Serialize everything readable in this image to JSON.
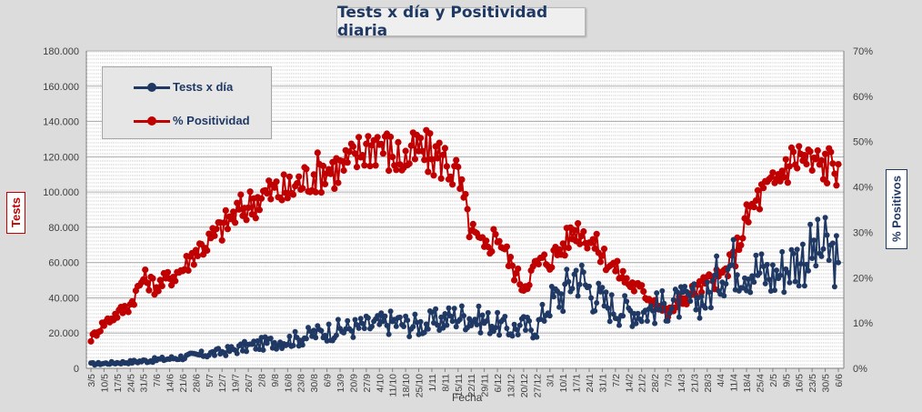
{
  "title": "Tests x día y Positividad diaria",
  "colors": {
    "tests": "#1f3864",
    "positividad": "#c00000",
    "grid": "#c0c0c0",
    "axis_text": "#404040"
  },
  "chart_data": {
    "type": "line",
    "title": "Tests x día y Positividad diaria",
    "xlabel": "Fecha",
    "ylabel_left": "Tests",
    "ylabel_right": "% Positivos",
    "ylim_left": [
      0,
      180000
    ],
    "ylim_right": [
      0,
      70
    ],
    "grid": true,
    "legend_position": "top-left",
    "y_left_ticks": [
      "0",
      "20.000",
      "40.000",
      "60.000",
      "80.000",
      "100.000",
      "120.000",
      "140.000",
      "160.000",
      "180.000"
    ],
    "y_right_ticks": [
      "0%",
      "10%",
      "20%",
      "30%",
      "40%",
      "50%",
      "60%",
      "70%"
    ],
    "x_ticks": [
      "3/5",
      "10/5",
      "17/5",
      "24/5",
      "31/5",
      "7/6",
      "14/6",
      "21/6",
      "28/6",
      "5/7",
      "12/7",
      "19/7",
      "26/7",
      "2/8",
      "9/8",
      "16/8",
      "23/8",
      "30/8",
      "6/9",
      "13/9",
      "20/9",
      "27/9",
      "4/10",
      "11/10",
      "18/10",
      "25/10",
      "1/11",
      "8/11",
      "15/11",
      "22/11",
      "29/11",
      "6/12",
      "13/12",
      "20/12",
      "27/12",
      "3/1",
      "10/1",
      "17/1",
      "24/1",
      "31/1",
      "7/2",
      "14/2",
      "21/2",
      "28/2",
      "7/3",
      "14/3",
      "21/3",
      "28/3",
      "4/4",
      "11/4",
      "18/4",
      "25/4",
      "2/5",
      "9/5",
      "16/5",
      "23/5",
      "30/5",
      "6/6"
    ],
    "series": [
      {
        "name": "Tests x día",
        "axis": "left",
        "weekly_values": [
          2500,
          2800,
          3200,
          3600,
          4200,
          4800,
          5500,
          6400,
          7300,
          8200,
          9300,
          10800,
          12500,
          13800,
          15000,
          15800,
          17200,
          19500,
          21000,
          22000,
          23000,
          24000,
          25000,
          26500,
          25000,
          24500,
          26000,
          28000,
          30000,
          29000,
          27000,
          25000,
          22000,
          24000,
          23000,
          38000,
          42000,
          55000,
          45000,
          38000,
          34000,
          33000,
          32000,
          34000,
          36000,
          37000,
          38000,
          40000,
          55000,
          60000,
          58000,
          55000,
          52000,
          58000,
          62000,
          66000,
          68000,
          60000
        ]
      },
      {
        "name": "% Positividad",
        "axis": "right",
        "weekly_values": [
          6.5,
          10,
          12,
          14,
          20,
          18,
          20,
          22,
          26,
          28,
          31,
          34,
          36,
          38,
          39,
          39,
          41,
          43,
          44,
          44,
          46,
          49,
          50,
          47,
          46,
          48,
          47,
          46,
          42,
          30,
          26,
          30,
          23,
          18,
          23,
          24,
          27,
          31,
          29,
          25,
          22,
          19,
          17,
          15,
          12,
          15,
          17,
          19,
          20,
          24,
          33,
          38,
          40,
          45,
          47,
          45,
          45,
          45
        ]
      }
    ]
  }
}
